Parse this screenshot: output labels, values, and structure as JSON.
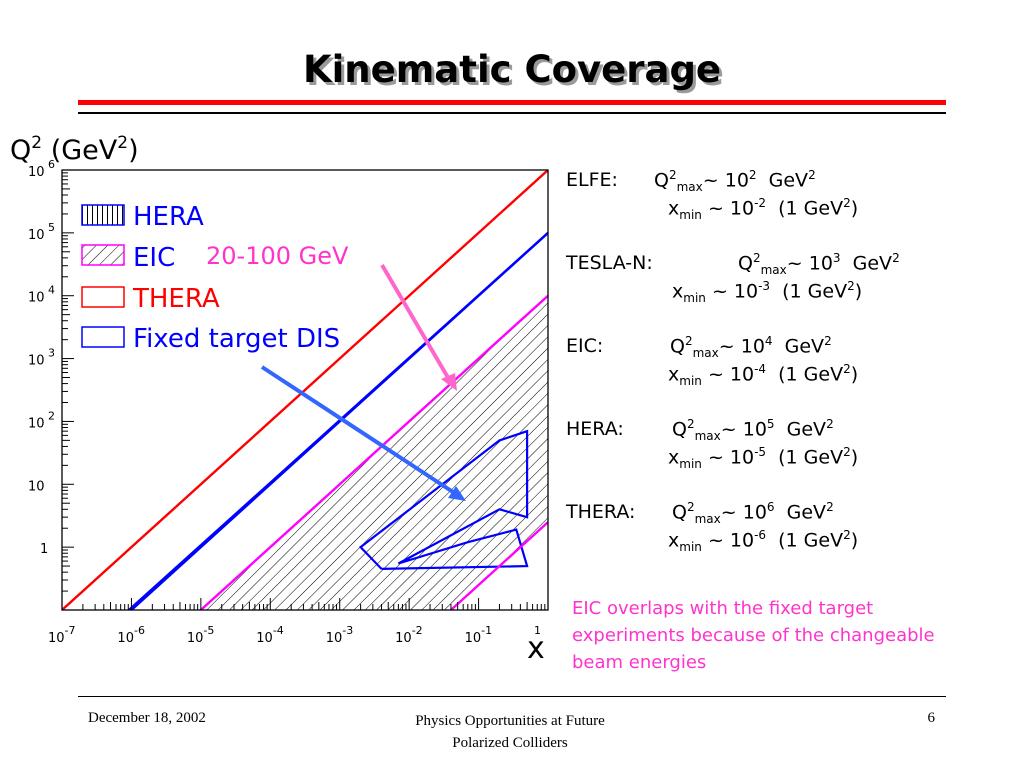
{
  "slide": {
    "title": "Kinematic Coverage",
    "footer_date": "December 18, 2002",
    "footer_line1": "Physics Opportunities at Future",
    "footer_line2": "Polarized Colliders",
    "page_number": "6"
  },
  "colors": {
    "title_bar": "#ff0000",
    "hera": "#0000ff",
    "eic": "#ff00ff",
    "thera": "#ff0000",
    "fixed_target": "#0000ff",
    "arrow_pink": "#ff66cc",
    "arrow_blue": "#3366ff",
    "note": "#ff33cc"
  },
  "chart_data": {
    "type": "area",
    "xlabel": "x",
    "ylabel_main": "Q",
    "ylabel_sup": "2",
    "ylabel_unit": "(GeV",
    "ylabel_unit_sup": "2",
    "ylabel_unit_close": ")",
    "x_scale": "log",
    "y_scale": "log",
    "xlim": [
      1e-07,
      1
    ],
    "ylim": [
      0.1,
      1000000
    ],
    "x_ticks": [
      {
        "base": "10",
        "exp": "-7",
        "value": 1e-07
      },
      {
        "base": "10",
        "exp": "-6",
        "value": 1e-06
      },
      {
        "base": "10",
        "exp": "-5",
        "value": 1e-05
      },
      {
        "base": "10",
        "exp": "-4",
        "value": 0.0001
      },
      {
        "base": "10",
        "exp": "-3",
        "value": 0.001
      },
      {
        "base": "10",
        "exp": "-2",
        "value": 0.01
      },
      {
        "base": "10",
        "exp": "-1",
        "value": 0.1
      },
      {
        "base": "",
        "exp": "1",
        "value": 1
      }
    ],
    "y_ticks": [
      {
        "base": "1",
        "exp": "",
        "value": 1
      },
      {
        "base": "10",
        "exp": "",
        "value": 10
      },
      {
        "base": "10",
        "exp": "2",
        "value": 100
      },
      {
        "base": "10",
        "exp": "3",
        "value": 1000
      },
      {
        "base": "10",
        "exp": "4",
        "value": 10000
      },
      {
        "base": "10",
        "exp": "5",
        "value": 100000
      },
      {
        "base": "10",
        "exp": "6",
        "value": 1000000
      }
    ],
    "legend": [
      {
        "label": "HERA",
        "color": "#0000ff",
        "pattern": "vertical"
      },
      {
        "label": "EIC",
        "color": "#ff00ff",
        "pattern": "diagonal"
      },
      {
        "label": "THERA",
        "color": "#ff0000",
        "pattern": "none"
      },
      {
        "label": "Fixed target DIS",
        "color": "#0000ff",
        "pattern": "none"
      }
    ],
    "legend_note": "20-100 GeV",
    "kinematic_limits": [
      {
        "series": "THERA",
        "q2_over_x": 1000000
      },
      {
        "series": "HERA",
        "q2_over_x": 100000
      },
      {
        "series": "EIC",
        "q2_over_x": 10000
      }
    ],
    "fixed_target_region": [
      [
        0.004,
        0.45
      ],
      [
        0.002,
        1
      ],
      [
        0.2,
        50
      ],
      [
        0.5,
        70
      ],
      [
        0.5,
        3
      ],
      [
        0.2,
        4
      ],
      [
        0.007,
        0.55
      ],
      [
        0.07,
        1.2
      ],
      [
        0.35,
        1.9
      ],
      [
        0.5,
        0.5
      ],
      [
        0.004,
        0.45
      ]
    ],
    "eic_lower_edge": [
      {
        "x": 0.04,
        "q2": 0.1
      },
      {
        "x": 1,
        "q2": 2.5
      }
    ],
    "hera_lower_edge": [
      {
        "x": 9.2e-07,
        "q2": 0.1
      },
      {
        "x": 1,
        "q2": 100000
      }
    ]
  },
  "info": [
    {
      "name": "ELFE:",
      "q_label": "Q",
      "q_sup": "2",
      "q_sub": "max",
      "q_val": "~ 10",
      "q_val_sup": "2",
      "q_unit": "GeV",
      "q_unit_sup": "2",
      "x_label": "x",
      "x_sub": "min",
      "x_val": "~  10",
      "x_val_sup": "-2",
      "x_tail": "(1 GeV",
      "x_tail_sup": "2",
      "x_close": ")"
    },
    {
      "name": "TESLA-N:",
      "q_label": "Q",
      "q_sup": "2",
      "q_sub": "max",
      "q_val": "~ 10",
      "q_val_sup": "3",
      "q_unit": "GeV",
      "q_unit_sup": "2",
      "x_label": "x",
      "x_sub": "min",
      "x_val": "~ 10",
      "x_val_sup": "-3",
      "x_tail": "(1 GeV",
      "x_tail_sup": "2",
      "x_close": ")"
    },
    {
      "name": "EIC:",
      "q_label": "Q",
      "q_sup": "2",
      "q_sub": "max",
      "q_val": "~ 10",
      "q_val_sup": "4",
      "q_unit": "GeV",
      "q_unit_sup": "2",
      "x_label": "x",
      "x_sub": "min",
      "x_val": "~ 10",
      "x_val_sup": "-4",
      "x_tail": "(1 GeV",
      "x_tail_sup": "2",
      "x_close": ")"
    },
    {
      "name": "HERA:",
      "q_label": "Q",
      "q_sup": "2",
      "q_sub": "max",
      "q_val": "~ 10",
      "q_val_sup": "5",
      "q_unit": "GeV",
      "q_unit_sup": "2",
      "x_label": "x",
      "x_sub": "min",
      "x_val": "~  10",
      "x_val_sup": "-5",
      "x_tail": "(1 GeV",
      "x_tail_sup": "2",
      "x_close": ")"
    },
    {
      "name": "THERA:",
      "q_label": "Q",
      "q_sup": "2",
      "q_sub": "max",
      "q_val": "~ 10",
      "q_val_sup": "6",
      "q_unit": "GeV",
      "q_unit_sup": "2",
      "x_label": "x",
      "x_sub": "min",
      "x_val": "~ 10",
      "x_val_sup": "-6",
      "x_tail": "(1 GeV",
      "x_tail_sup": "2",
      "x_close": ")"
    }
  ],
  "note": "EIC overlaps with the fixed target experiments because of the changeable beam energies"
}
